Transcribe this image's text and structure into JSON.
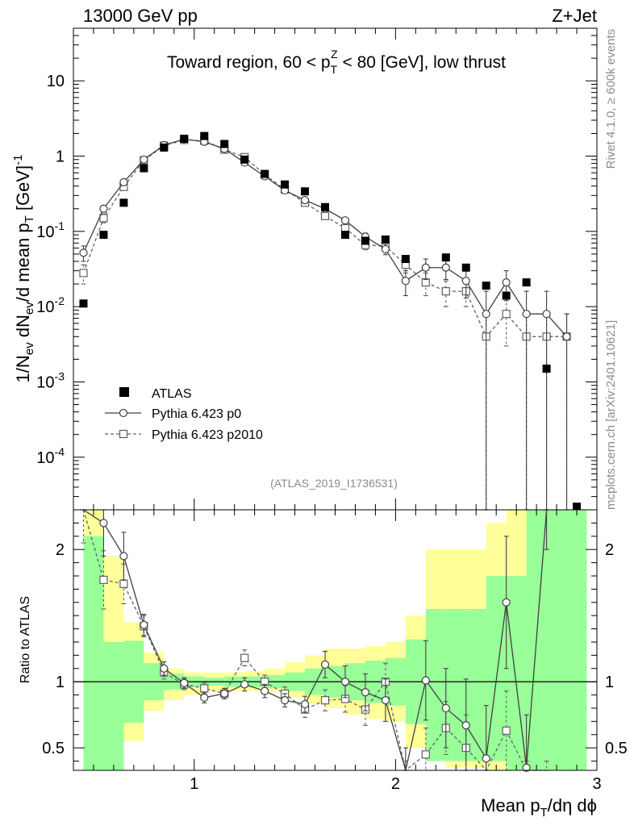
{
  "header": {
    "left": "13000 GeV pp",
    "right": "Z+Jet"
  },
  "side": {
    "rivet": "Rivet 4.1.0, ≥ 600k events",
    "mcplots": "mcplots.cern.ch [arXiv:2401.10621]"
  },
  "chart_data": {
    "type": "scatter",
    "title": "Toward region, 60 < p_T^Z < 80 [GeV], low thrust",
    "title_parts": {
      "before": "Toward region, 60 < p",
      "sup": "Z",
      "sub": "T",
      "after": " < 80 [GeV], low thrust"
    },
    "analysis_id": "(ATLAS_2019_I1736531)",
    "xlabel": "Mean p_T/dη dϕ",
    "xlabel_parts": {
      "main": "Mean p",
      "sub": "T",
      "after": "/dη dϕ"
    },
    "ylabel": "1/N_ev dN_ev/d mean p_T [GeV]^-1",
    "ylabel_parts": {
      "a": "1/N",
      "a_sub": "ev",
      "b": " dN",
      "b_sub": "ev",
      "c": "/d mean p",
      "c_sub": "T",
      "d": " [GeV]",
      "d_sup": "-1"
    },
    "ratio_ylabel": "Ratio to ATLAS",
    "xlim": [
      0.4,
      3.0
    ],
    "ylim_main": [
      2e-05,
      50
    ],
    "ylim_ratio": [
      0.33,
      2.3
    ],
    "x_ticks": [
      {
        "value": 1,
        "label": "1"
      },
      {
        "value": 2,
        "label": "2"
      },
      {
        "value": 3,
        "label": "3"
      }
    ],
    "y_ticks_main": [
      {
        "value": 0.0001,
        "base": "10",
        "exp": "-4"
      },
      {
        "value": 0.001,
        "base": "10",
        "exp": "-3"
      },
      {
        "value": 0.01,
        "base": "10",
        "exp": "-2"
      },
      {
        "value": 0.1,
        "base": "10",
        "exp": "-1"
      },
      {
        "value": 1,
        "base": "1",
        "exp": ""
      },
      {
        "value": 10,
        "base": "10",
        "exp": ""
      }
    ],
    "y_ticks_ratio": [
      {
        "value": 0.5,
        "label": "0.5"
      },
      {
        "value": 1,
        "label": "1"
      },
      {
        "value": 2,
        "label": "2"
      }
    ],
    "legend": [
      {
        "key": "atlas",
        "label": "ATLAS"
      },
      {
        "key": "p0",
        "label": "Pythia 6.423 p0"
      },
      {
        "key": "p2010",
        "label": "Pythia 6.423 p2010"
      }
    ],
    "x": [
      0.45,
      0.55,
      0.65,
      0.75,
      0.85,
      0.95,
      1.05,
      1.15,
      1.25,
      1.35,
      1.45,
      1.55,
      1.65,
      1.75,
      1.85,
      1.95,
      2.05,
      2.15,
      2.25,
      2.35,
      2.45,
      2.55,
      2.65,
      2.75,
      2.85
    ],
    "series": [
      {
        "name": "ATLAS",
        "values": [
          0.011,
          0.09,
          0.24,
          0.69,
          1.3,
          1.7,
          1.85,
          1.45,
          0.9,
          0.58,
          0.42,
          0.34,
          0.21,
          0.09,
          0.075,
          0.078,
          0.043,
          0.045,
          0.033,
          0.019,
          0.014,
          0.021,
          0.0015,
          2.2e-05
        ]
      },
      {
        "name": "Pythia 6.423 p0",
        "values": [
          0.052,
          0.2,
          0.45,
          0.9,
          1.4,
          1.68,
          1.55,
          1.25,
          0.82,
          0.54,
          0.35,
          0.26,
          0.2,
          0.14,
          0.085,
          0.058,
          0.022,
          0.033,
          0.033,
          0.022,
          0.008,
          0.021,
          0.008,
          0.008,
          0.004
        ],
        "errors": [
          0.012,
          0.02,
          0.03,
          0.05,
          0.07,
          0.08,
          0.08,
          0.06,
          0.04,
          0.03,
          0.02,
          0.015,
          0.014,
          0.012,
          0.01,
          0.009,
          0.008,
          0.01,
          0.01,
          0.009,
          0.008,
          0.009,
          0.008,
          0.008,
          0.004
        ]
      },
      {
        "name": "Pythia 6.423 p2010",
        "values": [
          0.028,
          0.15,
          0.39,
          0.88,
          1.38,
          1.64,
          1.6,
          1.22,
          0.97,
          0.57,
          0.36,
          0.24,
          0.16,
          0.11,
          0.066,
          0.064,
          0.036,
          0.021,
          0.016,
          0.016,
          0.004,
          0.008,
          0.004,
          0.004,
          0.004
        ],
        "errors": [
          0.008,
          0.02,
          0.03,
          0.05,
          0.07,
          0.08,
          0.08,
          0.06,
          0.05,
          0.03,
          0.02,
          0.015,
          0.012,
          0.01,
          0.009,
          0.008,
          0.008,
          0.007,
          0.006,
          0.006,
          0.004,
          0.005,
          0.004,
          0.004,
          0.004
        ]
      }
    ],
    "ratio_series": [
      {
        "name": "Pythia 6.423 p0",
        "values": [
          4.7,
          2.2,
          1.95,
          1.43,
          1.1,
          0.99,
          0.88,
          0.91,
          0.98,
          0.93,
          0.86,
          0.83,
          1.13,
          1.0,
          0.92,
          0.86,
          0.28,
          1.01,
          0.8,
          0.67,
          0.42,
          1.6,
          0.35,
          5.0,
          null
        ],
        "errors": [
          0.9,
          0.25,
          0.18,
          0.08,
          0.05,
          0.04,
          0.04,
          0.04,
          0.05,
          0.05,
          0.05,
          0.06,
          0.1,
          0.12,
          0.14,
          0.16,
          0.22,
          0.3,
          0.3,
          0.35,
          0.4,
          0.5,
          0.4,
          3,
          0
        ]
      },
      {
        "name": "Pythia 6.423 p2010",
        "values": [
          2.55,
          1.77,
          1.74,
          1.42,
          1.07,
          0.98,
          0.95,
          0.91,
          1.18,
          1.0,
          0.91,
          0.79,
          0.86,
          0.87,
          0.79,
          1.0,
          0.2,
          0.45,
          0.65,
          0.5,
          0.2,
          0.63,
          0.2,
          0.2,
          null
        ],
        "errors": [
          0.5,
          0.22,
          0.15,
          0.08,
          0.05,
          0.04,
          0.04,
          0.04,
          0.06,
          0.05,
          0.05,
          0.06,
          0.08,
          0.1,
          0.12,
          0.14,
          0.2,
          0.2,
          0.2,
          0.25,
          0.2,
          0.3,
          0.2,
          0.2,
          0
        ]
      }
    ],
    "ratio_bands": {
      "edges": [
        0.45,
        0.55,
        0.65,
        0.75,
        0.85,
        0.95,
        1.05,
        1.15,
        1.25,
        1.35,
        1.45,
        1.55,
        1.65,
        1.75,
        1.85,
        1.95,
        2.05,
        2.15,
        2.25,
        2.35,
        2.45,
        2.55,
        2.65,
        2.75,
        2.85,
        2.95
      ],
      "green_low": [
        0.2,
        0.2,
        0.69,
        0.86,
        0.94,
        0.96,
        0.97,
        0.96,
        0.96,
        0.95,
        0.93,
        0.9,
        0.88,
        0.86,
        0.84,
        0.82,
        0.68,
        0.4,
        0.4,
        0.4,
        0.4,
        0.2,
        0.2,
        0.2,
        0.2
      ],
      "green_high": [
        2.1,
        1.3,
        1.31,
        1.14,
        1.06,
        1.04,
        1.03,
        1.04,
        1.04,
        1.05,
        1.07,
        1.1,
        1.12,
        1.14,
        1.16,
        1.18,
        1.32,
        1.55,
        1.55,
        1.55,
        1.8,
        1.8,
        2.3,
        3.0,
        3.0
      ],
      "yellow_low": [
        0.2,
        0.2,
        0.55,
        0.78,
        0.86,
        0.9,
        0.93,
        0.93,
        0.93,
        0.92,
        0.88,
        0.83,
        0.8,
        0.75,
        0.72,
        0.7,
        0.5,
        0.4,
        0.35,
        0.35,
        0.3,
        0.2,
        0.2,
        0.2,
        0.2
      ],
      "yellow_high": [
        3.0,
        1.95,
        1.45,
        1.22,
        1.1,
        1.07,
        1.07,
        1.07,
        1.08,
        1.1,
        1.15,
        1.2,
        1.25,
        1.25,
        1.27,
        1.3,
        1.5,
        2.0,
        2.0,
        2.0,
        2.2,
        2.5,
        3.0,
        3.0,
        3.0
      ]
    }
  }
}
